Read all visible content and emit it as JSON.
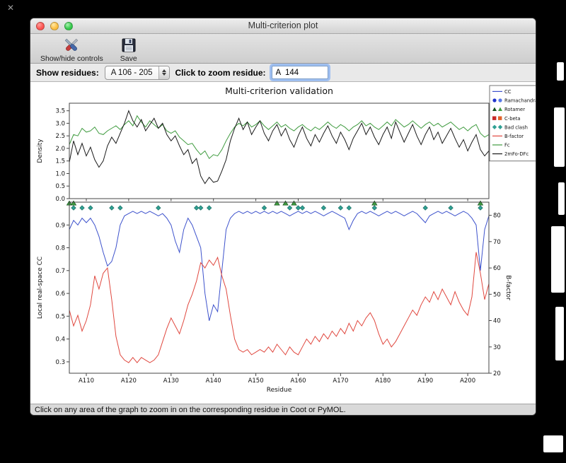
{
  "window": {
    "title": "Multi-criterion plot"
  },
  "toolbar": {
    "show_hide_label": "Show/hide controls",
    "save_label": "Save"
  },
  "controls": {
    "show_residues_label": "Show residues:",
    "residue_range_value": "A 106 - 205",
    "zoom_residue_label": "Click to zoom residue:",
    "zoom_residue_value": "A  144"
  },
  "status_bar": {
    "text": "Click on any area of the graph to zoom in on the corresponding residue in Coot or PyMOL."
  },
  "chart_data": {
    "type": "line",
    "title": "Multi-criterion validation",
    "xlabel": "Residue",
    "x_start": 106,
    "x_end": 205,
    "x_ticks": [
      {
        "label": "A110",
        "value": 110
      },
      {
        "label": "A120",
        "value": 120
      },
      {
        "label": "A130",
        "value": 130
      },
      {
        "label": "A140",
        "value": 140
      },
      {
        "label": "A150",
        "value": 150
      },
      {
        "label": "A160",
        "value": 160
      },
      {
        "label": "A170",
        "value": 170
      },
      {
        "label": "A180",
        "value": 180
      },
      {
        "label": "A190",
        "value": 190
      },
      {
        "label": "A200",
        "value": 200
      }
    ],
    "top_plot": {
      "ylabel": "Density",
      "ylim": [
        0.0,
        3.8
      ],
      "yticks": [
        0.0,
        0.5,
        1.0,
        1.5,
        2.0,
        2.5,
        3.0,
        3.5
      ],
      "series": [
        {
          "name": "Fc",
          "color": "#3f9b3f",
          "values": [
            2.15,
            2.55,
            2.5,
            2.8,
            2.65,
            2.7,
            2.85,
            2.6,
            2.55,
            2.7,
            2.8,
            2.9,
            2.75,
            2.95,
            3.1,
            2.9,
            3.3,
            3.05,
            2.85,
            3.1,
            2.95,
            2.8,
            2.95,
            2.7,
            2.6,
            2.7,
            2.45,
            2.3,
            2.15,
            2.2,
            1.95,
            1.75,
            1.9,
            1.6,
            1.75,
            1.7,
            1.95,
            2.3,
            2.6,
            2.85,
            3.0,
            2.9,
            3.05,
            2.85,
            2.95,
            3.1,
            2.9,
            2.75,
            2.9,
            3.05,
            2.85,
            2.95,
            2.8,
            2.7,
            2.85,
            2.95,
            2.8,
            2.7,
            2.85,
            2.75,
            2.9,
            3.05,
            2.9,
            2.8,
            2.95,
            2.85,
            2.7,
            2.85,
            2.95,
            3.1,
            2.9,
            3.0,
            2.85,
            2.75,
            2.9,
            3.05,
            2.9,
            3.15,
            3.0,
            2.85,
            2.95,
            3.1,
            2.95,
            2.8,
            2.95,
            3.05,
            2.9,
            3.0,
            2.85,
            2.95,
            3.05,
            2.9,
            2.75,
            2.85,
            2.7,
            2.85,
            2.95,
            2.6,
            2.45,
            2.55
          ]
        },
        {
          "name": "2mFo-DFc",
          "color": "#1a1a1a",
          "values": [
            1.45,
            2.3,
            1.75,
            2.2,
            1.7,
            2.05,
            1.55,
            1.25,
            1.5,
            2.1,
            2.45,
            2.2,
            2.6,
            3.0,
            3.5,
            3.1,
            2.85,
            3.15,
            2.7,
            2.95,
            3.2,
            2.8,
            3.0,
            2.55,
            2.3,
            2.5,
            2.1,
            1.75,
            1.95,
            1.4,
            1.6,
            0.9,
            0.6,
            0.85,
            0.65,
            0.7,
            1.1,
            1.55,
            2.3,
            2.8,
            3.2,
            2.75,
            3.05,
            2.55,
            2.85,
            3.1,
            2.6,
            2.3,
            2.7,
            2.95,
            2.5,
            2.8,
            2.35,
            2.05,
            2.5,
            2.85,
            2.4,
            2.1,
            2.55,
            2.25,
            2.6,
            2.9,
            2.5,
            2.2,
            2.65,
            2.35,
            1.95,
            2.4,
            2.7,
            3.0,
            2.55,
            2.85,
            2.45,
            2.15,
            2.55,
            2.85,
            2.4,
            3.05,
            2.65,
            2.25,
            2.6,
            2.95,
            2.5,
            2.15,
            2.55,
            2.85,
            2.35,
            2.65,
            2.2,
            2.5,
            2.8,
            2.4,
            2.05,
            2.35,
            1.9,
            2.25,
            2.55,
            1.95,
            1.7,
            1.9
          ]
        }
      ]
    },
    "bottom_plot": {
      "ylabel_left": "Local real-space CC",
      "ylabel_left_color": "#2b3bd0",
      "ylim_left": [
        0.25,
        1.0
      ],
      "yticks_left": [
        0.3,
        0.4,
        0.5,
        0.6,
        0.7,
        0.8,
        0.9
      ],
      "ylabel_right": "B-factor",
      "ylabel_right_color": "#cc2d26",
      "ylim_right": [
        20,
        85
      ],
      "yticks_right": [
        20,
        30,
        40,
        50,
        60,
        70,
        80
      ],
      "series": [
        {
          "name": "CC",
          "axis": "left",
          "color": "#3d52cc",
          "values": [
            0.88,
            0.92,
            0.9,
            0.93,
            0.91,
            0.93,
            0.9,
            0.85,
            0.78,
            0.72,
            0.74,
            0.8,
            0.9,
            0.94,
            0.95,
            0.96,
            0.95,
            0.96,
            0.95,
            0.96,
            0.95,
            0.94,
            0.95,
            0.93,
            0.9,
            0.83,
            0.78,
            0.88,
            0.93,
            0.9,
            0.85,
            0.8,
            0.6,
            0.48,
            0.55,
            0.52,
            0.7,
            0.88,
            0.93,
            0.95,
            0.96,
            0.95,
            0.96,
            0.95,
            0.96,
            0.95,
            0.96,
            0.95,
            0.96,
            0.95,
            0.96,
            0.95,
            0.94,
            0.95,
            0.96,
            0.95,
            0.96,
            0.95,
            0.96,
            0.95,
            0.94,
            0.95,
            0.96,
            0.95,
            0.94,
            0.93,
            0.88,
            0.92,
            0.95,
            0.96,
            0.95,
            0.96,
            0.95,
            0.94,
            0.95,
            0.96,
            0.95,
            0.96,
            0.95,
            0.94,
            0.95,
            0.96,
            0.95,
            0.93,
            0.91,
            0.94,
            0.95,
            0.96,
            0.95,
            0.96,
            0.95,
            0.94,
            0.95,
            0.96,
            0.95,
            0.93,
            0.9,
            0.7,
            0.88,
            0.94
          ]
        },
        {
          "name": "B-factor",
          "axis": "right",
          "color": "#e0483f",
          "values": [
            44,
            38,
            42,
            36,
            40,
            46,
            57,
            52,
            58,
            60,
            48,
            34,
            27,
            25,
            24,
            26,
            24,
            26,
            25,
            24,
            25,
            27,
            32,
            37,
            41,
            38,
            35,
            40,
            46,
            50,
            55,
            62,
            60,
            63,
            61,
            64,
            57,
            52,
            42,
            33,
            29,
            28,
            29,
            27,
            28,
            29,
            28,
            30,
            28,
            31,
            29,
            27,
            30,
            28,
            27,
            30,
            33,
            31,
            34,
            32,
            35,
            33,
            36,
            34,
            37,
            35,
            39,
            36,
            40,
            38,
            41,
            43,
            40,
            35,
            31,
            33,
            30,
            32,
            35,
            38,
            41,
            44,
            42,
            46,
            49,
            47,
            51,
            48,
            52,
            49,
            46,
            51,
            47,
            44,
            42,
            49,
            66,
            58,
            48,
            54
          ]
        }
      ],
      "markers": [
        {
          "name": "Bad clash",
          "shape": "diamond",
          "color": "#2fa093",
          "edge": "#1c6f63",
          "cc_y": 0.975,
          "residues": [
            107,
            109,
            111,
            116,
            118,
            127,
            136,
            137,
            139,
            152,
            158,
            160,
            161,
            166,
            170,
            172,
            178,
            190,
            196,
            203
          ]
        },
        {
          "name": "Rotamer",
          "shape": "triangle",
          "color": "#3f9b3f",
          "edge": "#14501e",
          "cc_y": 0.995,
          "residues": [
            106,
            107,
            155,
            157,
            159,
            178,
            203
          ]
        }
      ]
    },
    "legend": [
      {
        "label": "CC",
        "type": "line",
        "color": "#3d52cc"
      },
      {
        "label": "Ramachandran",
        "type": "circles",
        "colors": [
          "#2135cc",
          "#5577e8"
        ]
      },
      {
        "label": "Rotamer",
        "type": "triangles",
        "colors": [
          "#14501e",
          "#3f9b3f"
        ]
      },
      {
        "label": "C-beta",
        "type": "squares",
        "colors": [
          "#c62828",
          "#e2622a"
        ]
      },
      {
        "label": "Bad clash",
        "type": "diamonds",
        "colors": [
          "#2fa093",
          "#2fa093"
        ]
      },
      {
        "label": "B-factor",
        "type": "line",
        "color": "#e0483f"
      },
      {
        "label": "Fc",
        "type": "line",
        "color": "#3f9b3f"
      },
      {
        "label": "2mFo-DFc",
        "type": "line",
        "color": "#1a1a1a"
      }
    ]
  }
}
